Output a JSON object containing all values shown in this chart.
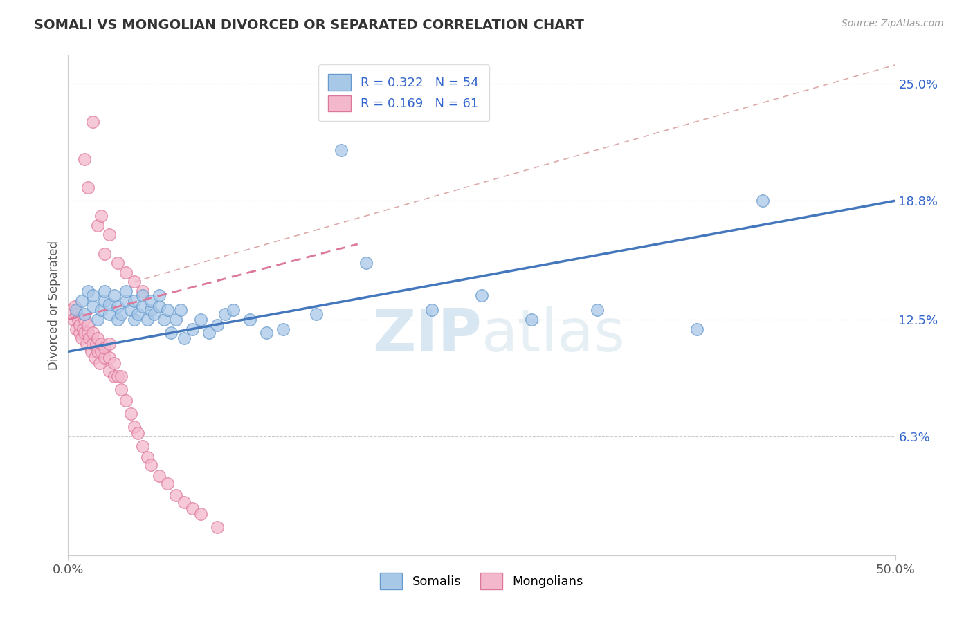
{
  "title": "SOMALI VS MONGOLIAN DIVORCED OR SEPARATED CORRELATION CHART",
  "source_text": "Source: ZipAtlas.com",
  "ylabel": "Divorced or Separated",
  "xmin": 0.0,
  "xmax": 0.5,
  "ymin": 0.0,
  "ymax": 0.265,
  "yticks": [
    0.0,
    0.063,
    0.125,
    0.188,
    0.25
  ],
  "ytick_labels": [
    "",
    "6.3%",
    "12.5%",
    "18.8%",
    "25.0%"
  ],
  "xtick_labels": [
    "0.0%",
    "50.0%"
  ],
  "legend_r1": "R = 0.322   N = 54",
  "legend_r2": "R = 0.169   N = 61",
  "color_somali": "#a8c8e8",
  "color_mongolian": "#f4b8cc",
  "color_edge_somali": "#6699cc",
  "color_edge_mongolian": "#dd7799",
  "color_line_somali": "#4477bb",
  "color_line_mongolian": "#dd7799",
  "color_diag": "#ddbbcc",
  "background_color": "#ffffff",
  "watermark_color": "#c8dff0",
  "somali_x": [
    0.005,
    0.008,
    0.01,
    0.012,
    0.015,
    0.015,
    0.018,
    0.02,
    0.022,
    0.022,
    0.025,
    0.025,
    0.028,
    0.03,
    0.03,
    0.032,
    0.035,
    0.035,
    0.038,
    0.04,
    0.04,
    0.042,
    0.045,
    0.045,
    0.048,
    0.05,
    0.05,
    0.052,
    0.055,
    0.055,
    0.058,
    0.06,
    0.062,
    0.065,
    0.068,
    0.07,
    0.075,
    0.08,
    0.085,
    0.09,
    0.095,
    0.1,
    0.11,
    0.12,
    0.13,
    0.15,
    0.165,
    0.18,
    0.22,
    0.25,
    0.28,
    0.32,
    0.38,
    0.42
  ],
  "somali_y": [
    0.13,
    0.135,
    0.128,
    0.14,
    0.132,
    0.138,
    0.125,
    0.13,
    0.135,
    0.14,
    0.128,
    0.133,
    0.138,
    0.125,
    0.132,
    0.128,
    0.135,
    0.14,
    0.13,
    0.125,
    0.135,
    0.128,
    0.132,
    0.138,
    0.125,
    0.13,
    0.135,
    0.128,
    0.132,
    0.138,
    0.125,
    0.13,
    0.118,
    0.125,
    0.13,
    0.115,
    0.12,
    0.125,
    0.118,
    0.122,
    0.128,
    0.13,
    0.125,
    0.118,
    0.12,
    0.128,
    0.215,
    0.155,
    0.13,
    0.138,
    0.125,
    0.13,
    0.12,
    0.188
  ],
  "mongolian_x": [
    0.002,
    0.003,
    0.004,
    0.005,
    0.005,
    0.006,
    0.007,
    0.007,
    0.008,
    0.009,
    0.01,
    0.01,
    0.011,
    0.012,
    0.012,
    0.013,
    0.014,
    0.015,
    0.015,
    0.016,
    0.017,
    0.018,
    0.018,
    0.019,
    0.02,
    0.02,
    0.022,
    0.022,
    0.025,
    0.025,
    0.025,
    0.028,
    0.028,
    0.03,
    0.032,
    0.032,
    0.035,
    0.038,
    0.04,
    0.042,
    0.045,
    0.048,
    0.05,
    0.055,
    0.06,
    0.065,
    0.07,
    0.075,
    0.08,
    0.09,
    0.01,
    0.012,
    0.015,
    0.018,
    0.02,
    0.022,
    0.025,
    0.03,
    0.035,
    0.04,
    0.045
  ],
  "mongolian_y": [
    0.13,
    0.125,
    0.132,
    0.12,
    0.128,
    0.125,
    0.118,
    0.122,
    0.115,
    0.12,
    0.118,
    0.125,
    0.112,
    0.118,
    0.122,
    0.115,
    0.108,
    0.112,
    0.118,
    0.105,
    0.112,
    0.108,
    0.115,
    0.102,
    0.108,
    0.112,
    0.105,
    0.11,
    0.098,
    0.105,
    0.112,
    0.095,
    0.102,
    0.095,
    0.088,
    0.095,
    0.082,
    0.075,
    0.068,
    0.065,
    0.058,
    0.052,
    0.048,
    0.042,
    0.038,
    0.032,
    0.028,
    0.025,
    0.022,
    0.015,
    0.21,
    0.195,
    0.23,
    0.175,
    0.18,
    0.16,
    0.17,
    0.155,
    0.15,
    0.145,
    0.14
  ]
}
